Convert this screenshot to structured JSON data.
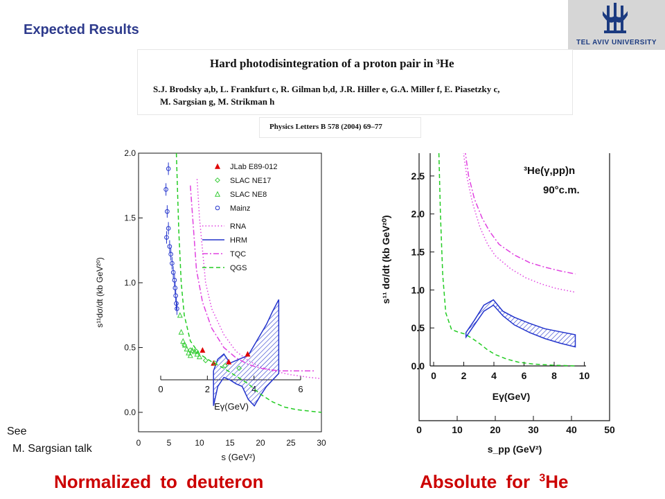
{
  "slide_title": "Expected Results",
  "logo_text": "TEL AVIV UNIVERSITY",
  "paper": {
    "title": "Hard photodisintegration of a proton pair in ³He",
    "authors_line1": "S.J. Brodsky a,b, L. Frankfurt c, R. Gilman b,d, J.R. Hiller e, G.A. Miller f, E. Piasetzky c,",
    "authors_line2": "M. Sargsian g, M. Strikman h",
    "journal": "Physics Letters B 578 (2004) 69–77"
  },
  "see_note": {
    "line1": "See",
    "line2": "M. Sargsian talk"
  },
  "caption_left": "Normalized to deuteron",
  "caption_right_prefix": "Absolute for ",
  "caption_right_sup": "3",
  "caption_right_suffix": "He",
  "chart_data": [
    {
      "type": "scatter",
      "title": "",
      "xlabel": "s (GeV²)",
      "xlabel_top": "Eγ(GeV)",
      "ylabel": "s¹¹dσ/dt (kb GeV²⁰)",
      "xlim": [
        0,
        30
      ],
      "ylim": [
        -0.15,
        2.0
      ],
      "x_ticks": [
        "0",
        "5",
        "10",
        "15",
        "20",
        "25",
        "30"
      ],
      "y_ticks": [
        "0.0",
        "0.5",
        "1.0",
        "1.5",
        "2.0"
      ],
      "top_axis_ticks": [
        "0",
        "2",
        "4",
        "6"
      ],
      "legend_position": "top-right",
      "series": [
        {
          "name": "JLab  E89-012",
          "marker": "triangle-filled",
          "color": "#e00000",
          "points": [
            [
              10.5,
              0.48
            ],
            [
              12.3,
              0.38
            ],
            [
              14.8,
              0.39
            ],
            [
              17.9,
              0.45
            ]
          ]
        },
        {
          "name": "SLAC  NE17",
          "marker": "diamond",
          "color": "#33cc33",
          "points": [
            [
              7.5,
              0.52
            ],
            [
              8.5,
              0.48
            ],
            [
              9.5,
              0.47
            ],
            [
              11.0,
              0.4
            ],
            [
              12.5,
              0.38
            ],
            [
              14.2,
              0.36
            ],
            [
              16.5,
              0.34
            ]
          ]
        },
        {
          "name": "SLAC  NE8",
          "marker": "triangle-open",
          "color": "#33cc33",
          "points": [
            [
              6.8,
              0.75
            ],
            [
              7.0,
              0.62
            ],
            [
              7.3,
              0.55
            ],
            [
              7.6,
              0.52
            ],
            [
              7.9,
              0.49
            ],
            [
              8.2,
              0.46
            ],
            [
              8.5,
              0.44
            ],
            [
              8.8,
              0.48
            ],
            [
              9.2,
              0.47
            ],
            [
              9.6,
              0.45
            ],
            [
              10.0,
              0.43
            ]
          ]
        },
        {
          "name": "Mainz",
          "marker": "circle-open",
          "color": "#2233cc",
          "points": [
            [
              4.9,
              1.88
            ],
            [
              4.5,
              1.72
            ],
            [
              4.7,
              1.55
            ],
            [
              4.9,
              1.42
            ],
            [
              4.6,
              1.35
            ],
            [
              5.1,
              1.28
            ],
            [
              5.3,
              1.22
            ],
            [
              5.5,
              1.15
            ],
            [
              5.7,
              1.08
            ],
            [
              5.9,
              1.02
            ],
            [
              6.0,
              0.96
            ],
            [
              6.1,
              0.9
            ],
            [
              6.2,
              0.84
            ],
            [
              6.3,
              0.8
            ]
          ]
        }
      ],
      "curves": [
        {
          "name": "RNA",
          "style": "dotted",
          "color": "#e040e0",
          "points": [
            [
              9.6,
              1.8
            ],
            [
              10,
              1.5
            ],
            [
              11,
              1.0
            ],
            [
              12,
              0.8
            ],
            [
              14,
              0.6
            ],
            [
              16,
              0.47
            ],
            [
              18,
              0.4
            ],
            [
              20,
              0.35
            ],
            [
              22,
              0.32
            ],
            [
              25,
              0.29
            ],
            [
              28,
              0.27
            ],
            [
              30,
              0.26
            ]
          ]
        },
        {
          "name": "HRM",
          "style": "solid-band",
          "color": "#2233cc",
          "upper": [
            [
              12.3,
              0.32
            ],
            [
              13,
              0.41
            ],
            [
              14,
              0.45
            ],
            [
              15,
              0.38
            ],
            [
              16,
              0.4
            ],
            [
              17,
              0.42
            ],
            [
              18,
              0.44
            ],
            [
              19,
              0.52
            ],
            [
              20,
              0.6
            ],
            [
              21,
              0.68
            ],
            [
              22,
              0.78
            ],
            [
              23,
              0.87
            ]
          ],
          "lower": [
            [
              12.3,
              0.05
            ],
            [
              13,
              0.2
            ],
            [
              14,
              0.27
            ],
            [
              15,
              0.25
            ],
            [
              16,
              0.22
            ],
            [
              17,
              0.2
            ],
            [
              18,
              0.1
            ],
            [
              19,
              0.05
            ],
            [
              20,
              0.13
            ],
            [
              21,
              0.2
            ],
            [
              22,
              0.25
            ],
            [
              23,
              0.3
            ]
          ]
        },
        {
          "name": "TQC",
          "style": "dash-dot",
          "color": "#e040e0",
          "points": [
            [
              8.5,
              1.75
            ],
            [
              9.5,
              1.1
            ],
            [
              10.5,
              0.85
            ],
            [
              12,
              0.65
            ],
            [
              14,
              0.5
            ],
            [
              16,
              0.42
            ],
            [
              18,
              0.37
            ],
            [
              20,
              0.34
            ],
            [
              23,
              0.32
            ],
            [
              26,
              0.32
            ],
            [
              29,
              0.32
            ]
          ]
        },
        {
          "name": "QGS",
          "style": "dashed",
          "color": "#22cc22",
          "points": [
            [
              6.2,
              2.0
            ],
            [
              6.6,
              1.4
            ],
            [
              7.0,
              1.0
            ],
            [
              7.5,
              0.75
            ],
            [
              8.5,
              0.55
            ],
            [
              10,
              0.45
            ],
            [
              12,
              0.39
            ],
            [
              14,
              0.34
            ],
            [
              16,
              0.28
            ],
            [
              18,
              0.22
            ],
            [
              20,
              0.14
            ],
            [
              22,
              0.08
            ],
            [
              24,
              0.04
            ],
            [
              26,
              0.02
            ],
            [
              30,
              0.0
            ]
          ]
        }
      ]
    },
    {
      "type": "line",
      "title": "",
      "annotation_line1": "³He(γ,pp)n",
      "annotation_line2": "90°c.m.",
      "xlabel": "s_pp (GeV²)",
      "xlabel_inner": "Eγ(GeV)",
      "ylabel": "s¹¹ dσ/dt (kb GeV²⁰)",
      "xlim": [
        0,
        50
      ],
      "ylim": [
        0,
        2.8
      ],
      "x_ticks": [
        "0",
        "10",
        "20",
        "30",
        "40",
        "50"
      ],
      "y_ticks": [
        "0.0",
        "0.5",
        "1.0",
        "1.5",
        "2.0",
        "2.5"
      ],
      "inner_x_ticks": [
        "0",
        "2",
        "4",
        "6",
        "8",
        "10"
      ],
      "curves": [
        {
          "name": "dotted",
          "style": "dotted",
          "color": "#e040e0",
          "points": [
            [
              11.5,
              2.85
            ],
            [
              12.5,
              2.5
            ],
            [
              14,
              2.15
            ],
            [
              16,
              1.82
            ],
            [
              18,
              1.6
            ],
            [
              20,
              1.45
            ],
            [
              24,
              1.28
            ],
            [
              28,
              1.16
            ],
            [
              32,
              1.08
            ],
            [
              36,
              1.02
            ],
            [
              41,
              0.97
            ]
          ]
        },
        {
          "name": "dash-dot",
          "style": "dash-dot",
          "color": "#e040e0",
          "points": [
            [
              12,
              2.85
            ],
            [
              13,
              2.5
            ],
            [
              14.5,
              2.2
            ],
            [
              16.5,
              1.95
            ],
            [
              18.5,
              1.77
            ],
            [
              21,
              1.6
            ],
            [
              25,
              1.46
            ],
            [
              29,
              1.36
            ],
            [
              33,
              1.3
            ],
            [
              37,
              1.25
            ],
            [
              41,
              1.21
            ]
          ]
        },
        {
          "name": "dashed",
          "style": "dashed",
          "color": "#22cc22",
          "points": [
            [
              5.2,
              2.8
            ],
            [
              5.6,
              2.0
            ],
            [
              6.2,
              1.2
            ],
            [
              7.0,
              0.7
            ],
            [
              8.5,
              0.48
            ],
            [
              10,
              0.45
            ],
            [
              12,
              0.42
            ],
            [
              14,
              0.36
            ],
            [
              16,
              0.29
            ],
            [
              18,
              0.21
            ],
            [
              20,
              0.15
            ],
            [
              23,
              0.09
            ],
            [
              26,
              0.05
            ],
            [
              30,
              0.025
            ],
            [
              35,
              0.01
            ],
            [
              41,
              0.0
            ]
          ]
        },
        {
          "name": "band",
          "style": "solid-band",
          "color": "#2233cc",
          "upper": [
            [
              12.3,
              0.44
            ],
            [
              14.5,
              0.6
            ],
            [
              17,
              0.8
            ],
            [
              19.5,
              0.87
            ],
            [
              22,
              0.72
            ],
            [
              25,
              0.64
            ],
            [
              29,
              0.56
            ],
            [
              33,
              0.49
            ],
            [
              37,
              0.45
            ],
            [
              41,
              0.41
            ]
          ],
          "lower": [
            [
              12.3,
              0.38
            ],
            [
              14.5,
              0.54
            ],
            [
              17,
              0.72
            ],
            [
              19.5,
              0.8
            ],
            [
              22,
              0.66
            ],
            [
              25,
              0.54
            ],
            [
              29,
              0.44
            ],
            [
              33,
              0.36
            ],
            [
              37,
              0.3
            ],
            [
              41,
              0.25
            ]
          ]
        }
      ]
    }
  ]
}
